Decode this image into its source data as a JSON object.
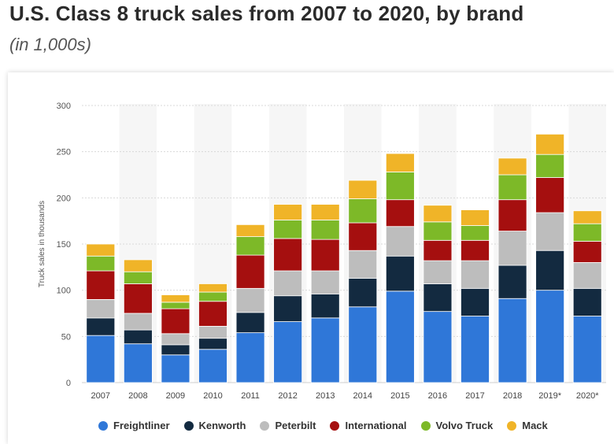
{
  "header": {
    "title": "U.S. Class 8 truck sales from 2007 to 2020, by brand",
    "subtitle": "(in 1,000s)"
  },
  "chart_data": {
    "type": "bar",
    "stacked": true,
    "categories": [
      "2007",
      "2008",
      "2009",
      "2010",
      "2011",
      "2012",
      "2013",
      "2014",
      "2015",
      "2016",
      "2017",
      "2018",
      "2019*",
      "2020*"
    ],
    "ylabel": "Truck sales in thousands",
    "xlabel": "",
    "ylim": [
      0,
      300
    ],
    "yticks": [
      0,
      50,
      100,
      150,
      200,
      250,
      300
    ],
    "grid": true,
    "legend_position": "bottom",
    "series": [
      {
        "name": "Freightliner",
        "color": "#2f77d8",
        "values": [
          51,
          42,
          30,
          36,
          54,
          66,
          70,
          82,
          99,
          77,
          72,
          91,
          100,
          72
        ]
      },
      {
        "name": "Kenworth",
        "color": "#132a40",
        "values": [
          19,
          15,
          11,
          12,
          22,
          28,
          26,
          31,
          38,
          30,
          30,
          36,
          43,
          30
        ]
      },
      {
        "name": "Peterbilt",
        "color": "#bdbdbd",
        "values": [
          20,
          18,
          12,
          13,
          26,
          27,
          25,
          30,
          32,
          25,
          30,
          37,
          41,
          28
        ]
      },
      {
        "name": "International",
        "color": "#a50f0f",
        "values": [
          31,
          32,
          27,
          27,
          36,
          35,
          34,
          30,
          29,
          22,
          22,
          34,
          38,
          23
        ]
      },
      {
        "name": "Volvo Truck",
        "color": "#7db928",
        "values": [
          16,
          13,
          7,
          10,
          20,
          20,
          21,
          26,
          30,
          20,
          16,
          27,
          25,
          19
        ]
      },
      {
        "name": "Mack",
        "color": "#f0b428",
        "values": [
          13,
          13,
          8,
          9,
          13,
          17,
          17,
          20,
          20,
          18,
          17,
          18,
          22,
          14
        ]
      }
    ]
  }
}
